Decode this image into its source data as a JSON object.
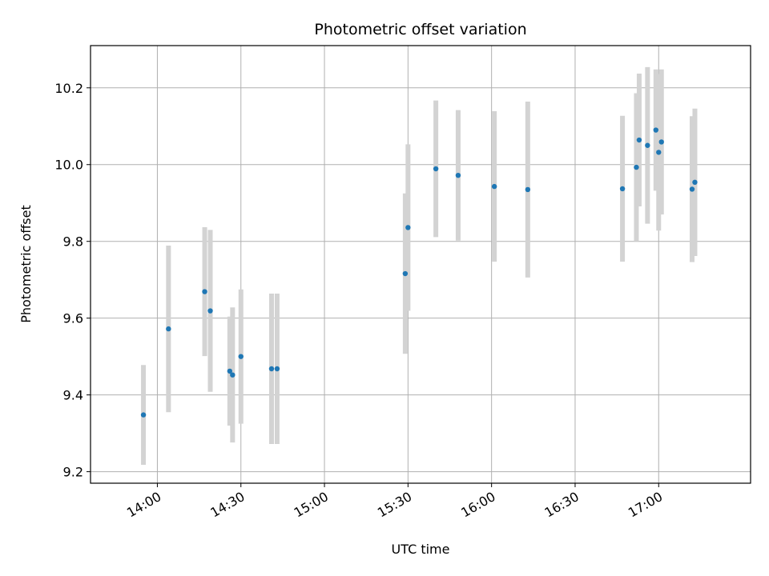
{
  "chart_data": {
    "type": "scatter",
    "title": "Photometric offset variation",
    "xlabel": "UTC time",
    "ylabel": "Photometric offset",
    "grid": true,
    "xlim": [
      "13:36",
      "17:33"
    ],
    "ylim": [
      9.17,
      10.31
    ],
    "x_ticks": [
      "14:00",
      "14:30",
      "15:00",
      "15:30",
      "16:00",
      "16:30",
      "17:00"
    ],
    "y_ticks": [
      9.2,
      9.4,
      9.6,
      9.8,
      10.0,
      10.2
    ],
    "y_tick_labels": [
      "9.2",
      "9.4",
      "9.6",
      "9.8",
      "10.0",
      "10.2"
    ],
    "colors": {
      "point": "#1f77b4",
      "errorbar": "#d3d3d3",
      "grid": "#b0b0b0"
    },
    "series": [
      {
        "points": [
          {
            "x": "13:55",
            "y": 9.348,
            "err": 0.13
          },
          {
            "x": "14:04",
            "y": 9.572,
            "err": 0.217
          },
          {
            "x": "14:17",
            "y": 9.669,
            "err": 0.168
          },
          {
            "x": "14:19",
            "y": 9.619,
            "err": 0.211
          },
          {
            "x": "14:26",
            "y": 9.462,
            "err": 0.142
          },
          {
            "x": "14:27",
            "y": 9.452,
            "err": 0.176
          },
          {
            "x": "14:30",
            "y": 9.5,
            "err": 0.175
          },
          {
            "x": "14:41",
            "y": 9.468,
            "err": 0.196
          },
          {
            "x": "14:43",
            "y": 9.468,
            "err": 0.196
          },
          {
            "x": "15:29",
            "y": 9.716,
            "err": 0.209
          },
          {
            "x": "15:30",
            "y": 9.836,
            "err": 0.217
          },
          {
            "x": "15:40",
            "y": 9.989,
            "err": 0.178
          },
          {
            "x": "15:48",
            "y": 9.972,
            "err": 0.17
          },
          {
            "x": "16:01",
            "y": 9.943,
            "err": 0.196
          },
          {
            "x": "16:13",
            "y": 9.935,
            "err": 0.229
          },
          {
            "x": "16:47",
            "y": 9.937,
            "err": 0.19
          },
          {
            "x": "16:52",
            "y": 9.993,
            "err": 0.193
          },
          {
            "x": "16:53",
            "y": 10.064,
            "err": 0.173
          },
          {
            "x": "16:56",
            "y": 10.05,
            "err": 0.204
          },
          {
            "x": "16:59",
            "y": 10.09,
            "err": 0.158
          },
          {
            "x": "17:00",
            "y": 10.032,
            "err": 0.204
          },
          {
            "x": "17:01",
            "y": 10.059,
            "err": 0.189
          },
          {
            "x": "17:12",
            "y": 9.936,
            "err": 0.19
          },
          {
            "x": "17:13",
            "y": 9.954,
            "err": 0.192
          }
        ]
      }
    ]
  }
}
